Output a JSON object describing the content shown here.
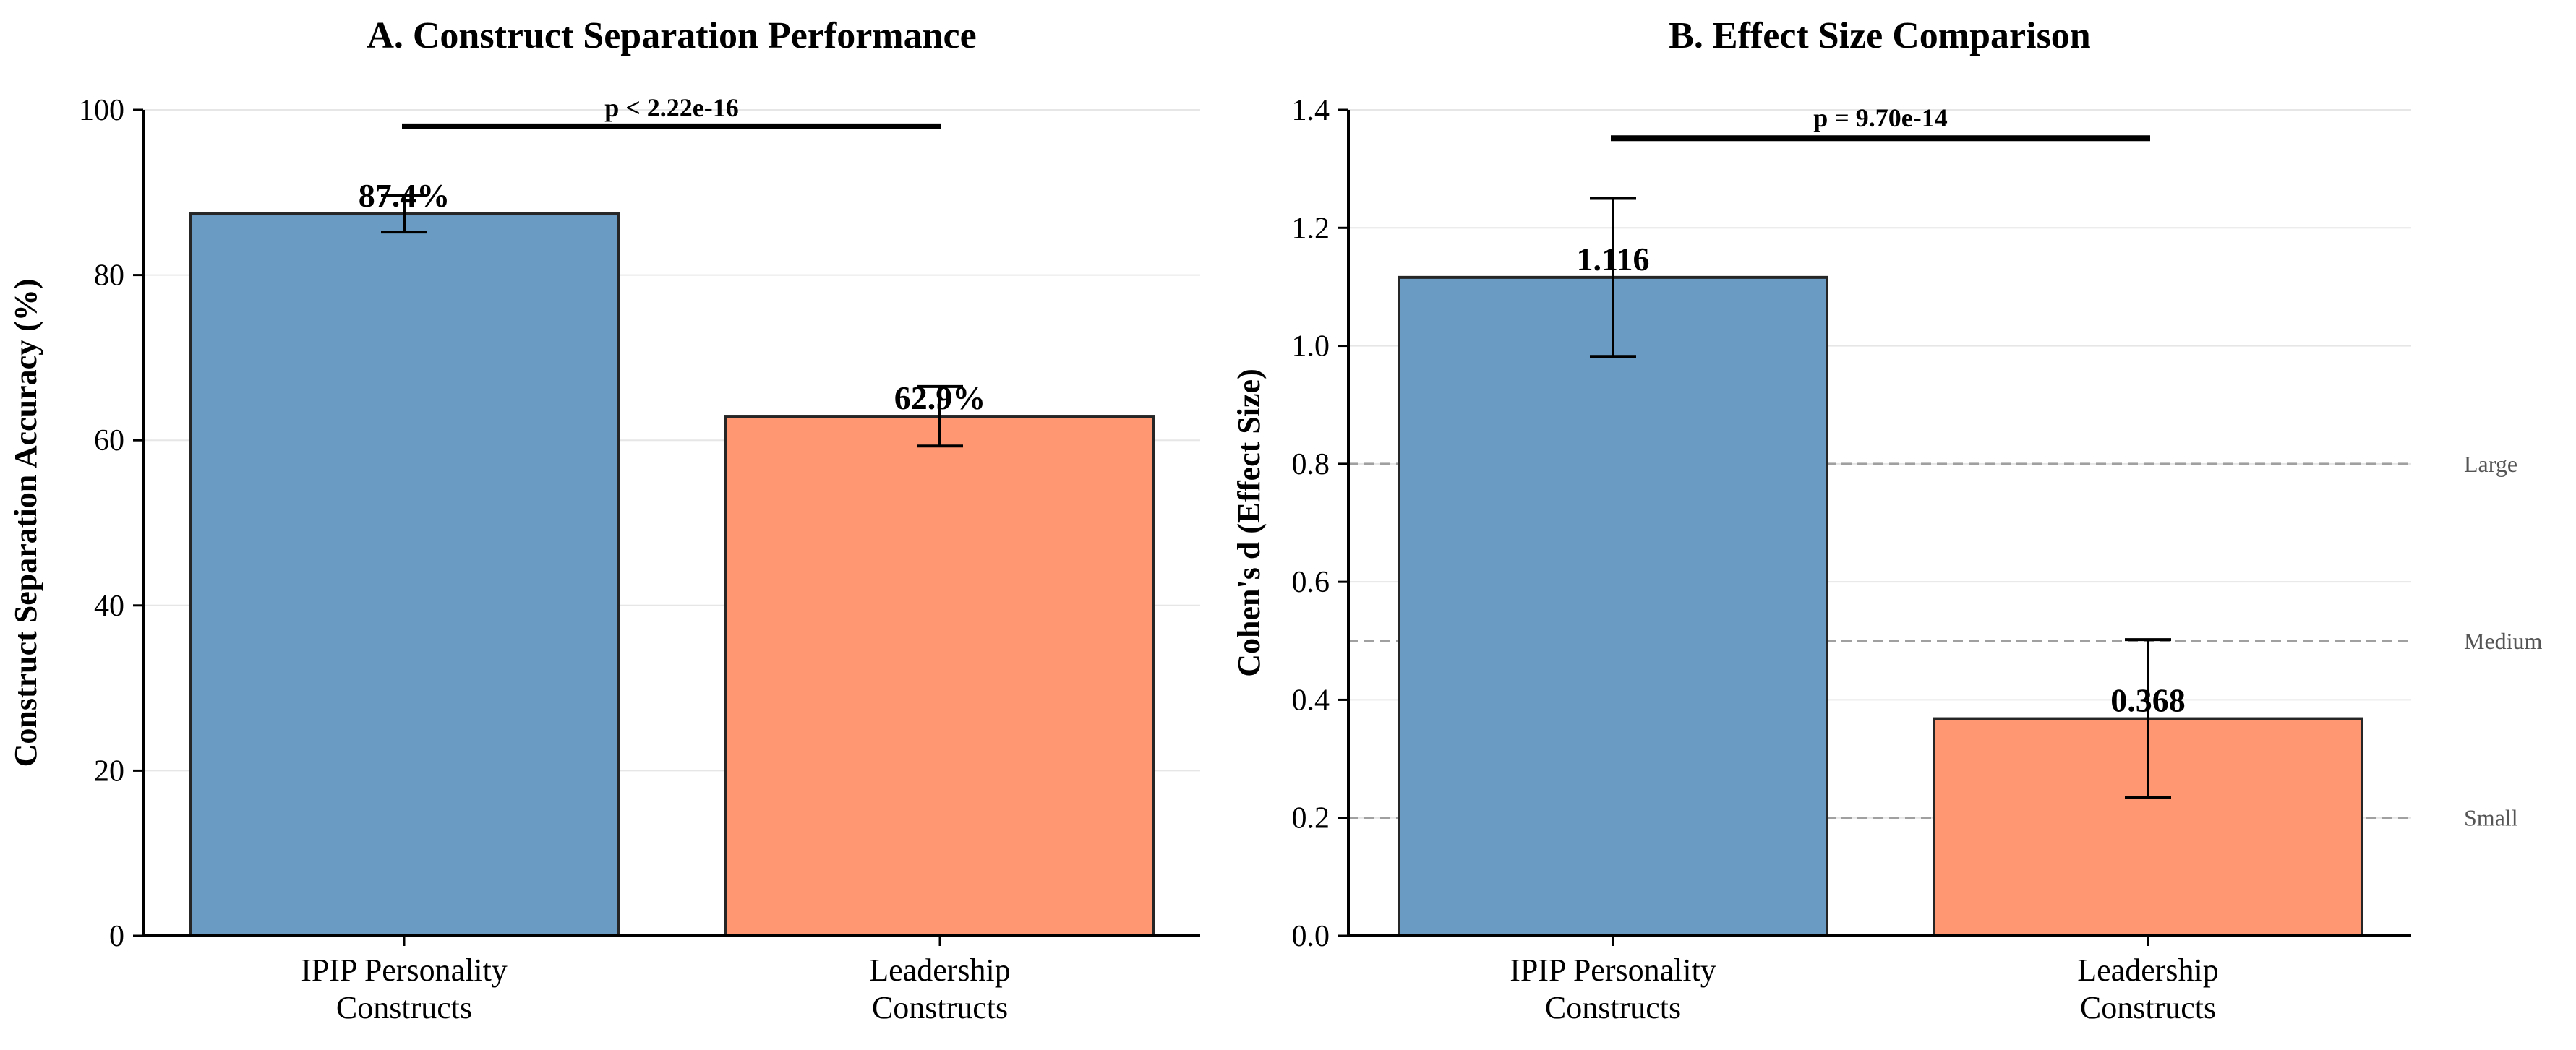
{
  "chart_data": [
    {
      "type": "bar",
      "title": "A. Construct Separation Performance",
      "xlabel": "",
      "ylabel": "Construct Separation Accuracy (%)",
      "ylim": [
        0,
        100
      ],
      "yticks": [
        0,
        20,
        40,
        60,
        80,
        100
      ],
      "ytick_labels": [
        "0",
        "20",
        "40",
        "60",
        "80",
        "100"
      ],
      "categories": [
        [
          "IPIP Personality",
          "Constructs"
        ],
        [
          "Leadership",
          "Constructs"
        ]
      ],
      "values": [
        87.4,
        62.9
      ],
      "errors": [
        2.2,
        3.6
      ],
      "value_labels": [
        "87.4%",
        "62.9%"
      ],
      "colors": [
        "#6a9bc3",
        "#ff9872"
      ],
      "grid": "y",
      "significance": {
        "label": "p < 2.22e-16",
        "value": 98
      }
    },
    {
      "type": "bar",
      "title": "B. Effect Size Comparison",
      "xlabel": "",
      "ylabel": "Cohen's d (Effect Size)",
      "ylim": [
        0,
        1.4
      ],
      "yticks": [
        0,
        0.2,
        0.4,
        0.6,
        0.8,
        1.0,
        1.2,
        1.4
      ],
      "ytick_labels": [
        "0.0",
        "0.2",
        "0.4",
        "0.6",
        "0.8",
        "1.0",
        "1.2",
        "1.4"
      ],
      "categories": [
        [
          "IPIP Personality",
          "Constructs"
        ],
        [
          "Leadership",
          "Constructs"
        ]
      ],
      "values": [
        1.116,
        0.368
      ],
      "errors": [
        0.134,
        0.134
      ],
      "value_labels": [
        "1.116",
        "0.368"
      ],
      "colors": [
        "#6a9bc3",
        "#ff9872"
      ],
      "grid": "y",
      "significance": {
        "label": "p = 9.70e-14",
        "value": 1.352
      },
      "reference_lines": [
        {
          "label": "Large",
          "value": 0.8
        },
        {
          "label": "Medium",
          "value": 0.5
        },
        {
          "label": "Small",
          "value": 0.2
        }
      ]
    }
  ]
}
